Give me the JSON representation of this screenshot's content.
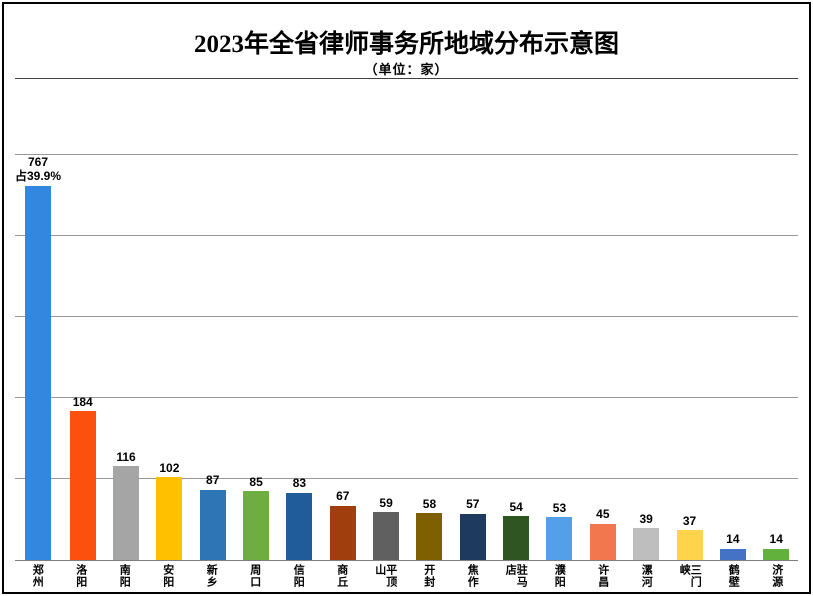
{
  "chart_data": {
    "type": "bar",
    "title": "2023年全省律师事务所地域分布示意图",
    "subtitle": "（单位：家）",
    "categories": [
      "郑州",
      "洛阳",
      "南阳",
      "安阳",
      "新乡",
      "周口",
      "信阳",
      "商丘",
      "平顶山",
      "开封",
      "焦作",
      "驻马店",
      "濮阳",
      "许昌",
      "漯河",
      "三门峡",
      "鹤壁",
      "济源"
    ],
    "values": [
      767,
      184,
      116,
      102,
      87,
      85,
      83,
      67,
      59,
      58,
      57,
      54,
      53,
      45,
      39,
      37,
      14,
      14
    ],
    "bar_labels": [
      [
        "767",
        "占39.9%"
      ],
      [
        "184"
      ],
      [
        "116"
      ],
      [
        "102"
      ],
      [
        "87"
      ],
      [
        "85"
      ],
      [
        "83"
      ],
      [
        "67"
      ],
      [
        "59"
      ],
      [
        "58"
      ],
      [
        "57"
      ],
      [
        "54"
      ],
      [
        "53"
      ],
      [
        "45"
      ],
      [
        "39"
      ],
      [
        "37"
      ],
      [
        "14"
      ],
      [
        "14"
      ]
    ],
    "bar_colors": [
      "#3487DE",
      "#FC500F",
      "#A5A5A5",
      "#FFC000",
      "#2E75B6",
      "#6EAE41",
      "#1F5C99",
      "#A13E0E",
      "#606060",
      "#7F6000",
      "#1E3A5F",
      "#2F5523",
      "#54A0E8",
      "#F2774E",
      "#BEBEBE",
      "#FFD34A",
      "#4472C4",
      "#62B13C"
    ],
    "xlabel": "",
    "ylabel": "",
    "ylim": [
      0,
      500
    ],
    "grid": true,
    "gridline_interval": 100,
    "legend": "none",
    "tallest_bar_clipped_at_axis_max": true
  },
  "colors": {
    "background": "#FFFFFF",
    "frame_border": "#000000",
    "gridline": "#989898",
    "axis_line": "#7F7F7F",
    "label_text": "#000000"
  }
}
